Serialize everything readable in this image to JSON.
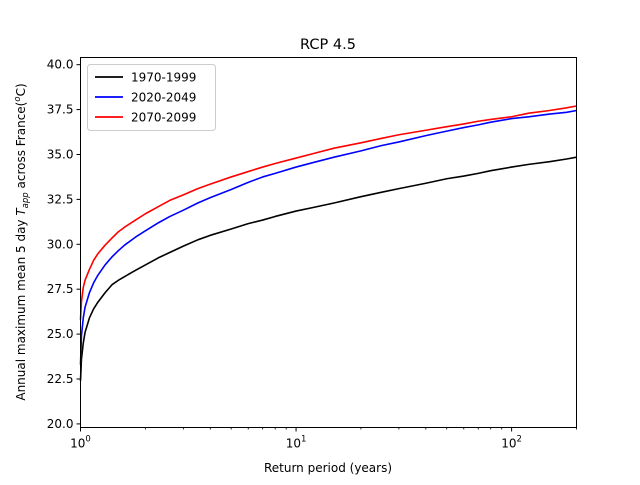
{
  "chart_data": {
    "type": "line",
    "title": "RCP 4.5",
    "xlabel": "Return period (years)",
    "ylabel_parts": {
      "before": "Annual maximum mean 5 day ",
      "var": "T",
      "sub": "app",
      "after": " across France(",
      "deg": "o",
      "unit": "C)"
    },
    "xscale": "log",
    "xlim": [
      1,
      200
    ],
    "ylim": [
      19.8,
      40.4
    ],
    "xticks": [
      {
        "value": 1,
        "base": "10",
        "exp": "0"
      },
      {
        "value": 10,
        "base": "10",
        "exp": "1"
      },
      {
        "value": 100,
        "base": "10",
        "exp": "2"
      }
    ],
    "yticks": [
      {
        "value": 20.0,
        "label": "20.0"
      },
      {
        "value": 22.5,
        "label": "22.5"
      },
      {
        "value": 25.0,
        "label": "25.0"
      },
      {
        "value": 27.5,
        "label": "27.5"
      },
      {
        "value": 30.0,
        "label": "30.0"
      },
      {
        "value": 32.5,
        "label": "32.5"
      },
      {
        "value": 35.0,
        "label": "35.0"
      },
      {
        "value": 37.5,
        "label": "37.5"
      },
      {
        "value": 40.0,
        "label": "40.0"
      }
    ],
    "grid": false,
    "legend": {
      "placement": "top-left"
    },
    "series": [
      {
        "name": "1970-1999",
        "color": "#000000",
        "x": [
          1.0,
          1.01,
          1.03,
          1.05,
          1.1,
          1.15,
          1.2,
          1.3,
          1.4,
          1.5,
          1.6,
          1.8,
          2.0,
          2.3,
          2.6,
          3.0,
          3.5,
          4.0,
          5.0,
          6.0,
          7.0,
          8.0,
          10,
          12,
          15,
          20,
          25,
          30,
          40,
          50,
          60,
          70,
          80,
          100,
          120,
          150,
          180,
          200
        ],
        "y": [
          22.4,
          23.6,
          24.5,
          25.1,
          25.9,
          26.4,
          26.75,
          27.3,
          27.75,
          28.0,
          28.2,
          28.55,
          28.85,
          29.25,
          29.55,
          29.9,
          30.25,
          30.5,
          30.85,
          31.15,
          31.35,
          31.55,
          31.85,
          32.05,
          32.3,
          32.65,
          32.9,
          33.1,
          33.4,
          33.65,
          33.8,
          33.95,
          34.1,
          34.3,
          34.45,
          34.6,
          34.75,
          34.85
        ]
      },
      {
        "name": "2020-2049",
        "color": "#0000ff",
        "x": [
          1.0,
          1.01,
          1.03,
          1.05,
          1.1,
          1.15,
          1.2,
          1.3,
          1.4,
          1.5,
          1.6,
          1.8,
          2.0,
          2.3,
          2.6,
          3.0,
          3.5,
          4.0,
          5.0,
          6.0,
          7.0,
          8.0,
          10,
          12,
          15,
          20,
          25,
          30,
          40,
          50,
          60,
          70,
          80,
          100,
          120,
          150,
          180,
          200
        ],
        "y": [
          23.3,
          24.9,
          25.9,
          26.5,
          27.3,
          27.85,
          28.25,
          28.85,
          29.3,
          29.65,
          29.95,
          30.4,
          30.75,
          31.2,
          31.55,
          31.9,
          32.3,
          32.6,
          33.05,
          33.45,
          33.75,
          33.95,
          34.3,
          34.55,
          34.85,
          35.2,
          35.5,
          35.7,
          36.05,
          36.3,
          36.5,
          36.65,
          36.8,
          37.0,
          37.1,
          37.25,
          37.35,
          37.45
        ]
      },
      {
        "name": "2070-2099",
        "color": "#ff0000",
        "x": [
          1.0,
          1.01,
          1.03,
          1.05,
          1.1,
          1.15,
          1.2,
          1.3,
          1.4,
          1.5,
          1.6,
          1.8,
          2.0,
          2.3,
          2.6,
          3.0,
          3.5,
          4.0,
          5.0,
          6.0,
          7.0,
          8.0,
          10,
          12,
          15,
          20,
          25,
          30,
          40,
          50,
          60,
          70,
          80,
          100,
          120,
          150,
          180,
          200
        ],
        "y": [
          25.8,
          26.8,
          27.6,
          28.0,
          28.6,
          29.1,
          29.45,
          29.95,
          30.35,
          30.7,
          30.95,
          31.35,
          31.7,
          32.1,
          32.45,
          32.75,
          33.1,
          33.35,
          33.75,
          34.05,
          34.3,
          34.5,
          34.8,
          35.05,
          35.35,
          35.65,
          35.9,
          36.1,
          36.35,
          36.55,
          36.7,
          36.85,
          36.95,
          37.1,
          37.3,
          37.45,
          37.6,
          37.7
        ]
      }
    ]
  }
}
